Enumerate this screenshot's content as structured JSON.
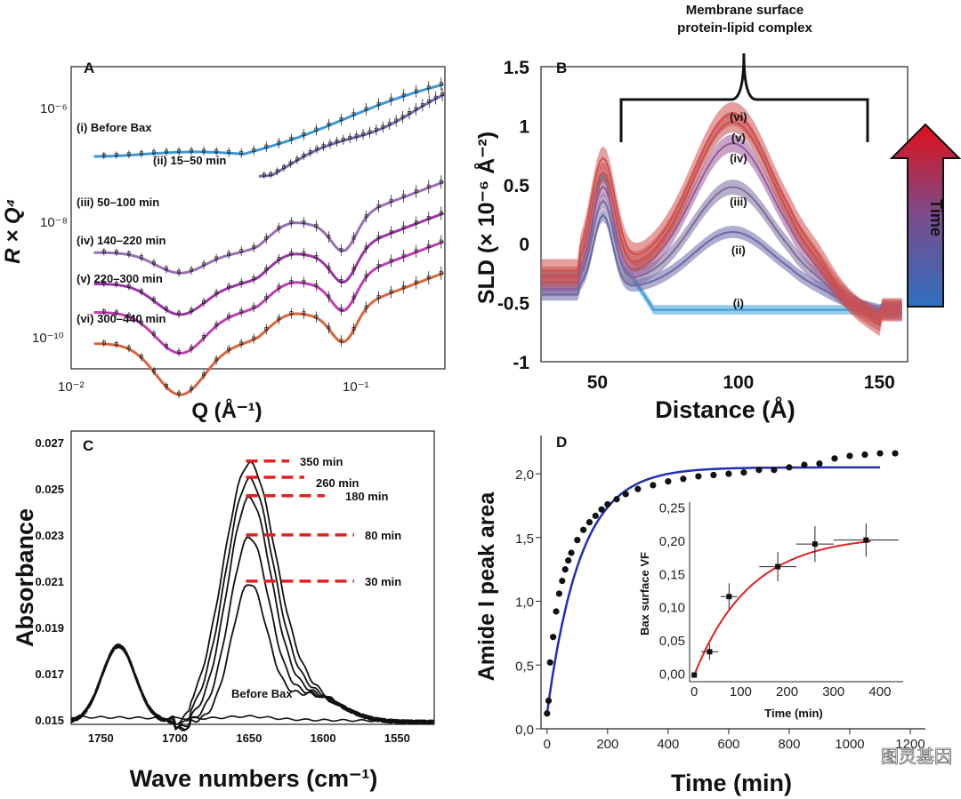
{
  "chart_data": [
    {
      "panel": "A",
      "type": "line",
      "xscale": "log",
      "yscale": "log",
      "xlabel": "Q (Å⁻¹)",
      "ylabel": "R × Q⁴",
      "xlim": [
        0.01,
        0.2
      ],
      "xticks": [
        "10⁻²",
        "10⁻¹"
      ],
      "yticks": [
        "10⁻⁶",
        "10⁻⁸",
        "10⁻¹⁰"
      ],
      "series": [
        {
          "name": "(i) Before Bax",
          "color": "#3a9ad9",
          "offset": 0
        },
        {
          "name": "(ii) 15–50 min",
          "color": "#7d67b4",
          "offset": 0.45
        },
        {
          "name": "(iii) 50–100 min",
          "color": "#9a6fb5",
          "offset": 1.25
        },
        {
          "name": "(iv) 140–220 min",
          "color": "#9c33a8",
          "offset": 1.8
        },
        {
          "name": "(v) 220–300 min",
          "color": "#c23cb8",
          "offset": 2.3
        },
        {
          "name": "(vi) 300–440 min",
          "color": "#d9653a",
          "offset": 2.85
        }
      ]
    },
    {
      "panel": "B",
      "type": "area",
      "xlabel": "Distance (Å)",
      "ylabel": "SLD (× 10⁻⁶ Å⁻²)",
      "xlim": [
        30,
        160
      ],
      "ylim": [
        -1,
        1.5
      ],
      "xticks": [
        "50",
        "100",
        "150"
      ],
      "yticks": [
        "1.5",
        "1",
        "0.5",
        "0",
        "-0.5",
        "-1"
      ],
      "annotation": [
        "Membrane surface",
        "protein-lipid complex"
      ],
      "colorbar_label": "Time",
      "series": [
        {
          "name": "(i)",
          "peak": -0.55,
          "color": "#3a9ad9"
        },
        {
          "name": "(ii)",
          "peak": -0.05,
          "color": "#6a6aa8"
        },
        {
          "name": "(iii)",
          "peak": 0.33,
          "color": "#7b6e9c"
        },
        {
          "name": "(iv)",
          "peak": 0.7,
          "color": "#9a5a9a"
        },
        {
          "name": "(v)",
          "peak": 0.88,
          "color": "#c0504d"
        },
        {
          "name": "(vi)",
          "peak": 0.95,
          "color": "#d05050"
        }
      ]
    },
    {
      "panel": "C",
      "type": "line",
      "xlabel": "Wave numbers (cm⁻¹)",
      "ylabel": "Absorbance",
      "xlim": [
        1770,
        1525
      ],
      "ylim": [
        0.0148,
        0.0275
      ],
      "xticks": [
        "1750",
        "1700",
        "1650",
        "1600",
        "1550"
      ],
      "yticks": [
        "0.027",
        "0.025",
        "0.023",
        "0.021",
        "0.019",
        "0.017",
        "0.015"
      ],
      "baseline_label": "Before Bax",
      "series": [
        {
          "name": "30 min",
          "peak": 0.021
        },
        {
          "name": "80 min",
          "peak": 0.023
        },
        {
          "name": "180 min",
          "peak": 0.0247
        },
        {
          "name": "260 min",
          "peak": 0.0255
        },
        {
          "name": "350 min",
          "peak": 0.0262
        }
      ]
    },
    {
      "panel": "D",
      "type": "scatter",
      "xlabel": "Time (min)",
      "ylabel": "Amide I peak area",
      "xlim": [
        -20,
        1250
      ],
      "ylim": [
        0,
        2.3
      ],
      "xticks": [
        "0",
        "200",
        "400",
        "600",
        "800",
        "1000",
        "1200"
      ],
      "yticks": [
        "0,0",
        "0,5",
        "1,0",
        "1,5",
        "2,0"
      ],
      "points_x": [
        0,
        5,
        10,
        20,
        30,
        40,
        50,
        60,
        70,
        80,
        100,
        120,
        140,
        160,
        180,
        200,
        230,
        260,
        300,
        350,
        400,
        450,
        500,
        550,
        600,
        650,
        700,
        750,
        800,
        850,
        900,
        950,
        1000,
        1050,
        1100,
        1150
      ],
      "points_y": [
        0.12,
        0.22,
        0.52,
        0.72,
        0.92,
        1.06,
        1.16,
        1.25,
        1.32,
        1.38,
        1.48,
        1.56,
        1.62,
        1.67,
        1.72,
        1.76,
        1.8,
        1.84,
        1.88,
        1.91,
        1.94,
        1.96,
        1.98,
        1.99,
        2.0,
        2.01,
        2.03,
        2.03,
        2.05,
        2.07,
        2.08,
        2.12,
        2.14,
        2.15,
        2.16,
        2.16
      ],
      "fit": {
        "type": "exponential",
        "amax": 2.05,
        "tau": 110,
        "color": "#1f2fb0"
      },
      "inset": {
        "xlabel": "Time (min)",
        "ylabel": "Bax surface VF",
        "xlim": [
          -10,
          450
        ],
        "ylim": [
          -0.01,
          0.26
        ],
        "xticks": [
          "0",
          "100",
          "200",
          "300",
          "400"
        ],
        "yticks": [
          "0,00",
          "0,05",
          "0,10",
          "0,15",
          "0,20",
          "0,25"
        ],
        "points_x": [
          0,
          33,
          75,
          180,
          260,
          370
        ],
        "points_y": [
          0.0,
          0.035,
          0.118,
          0.163,
          0.197,
          0.203
        ],
        "xerr": [
          0,
          18,
          18,
          40,
          40,
          70
        ],
        "yerr": [
          0,
          0.012,
          0.02,
          0.022,
          0.027,
          0.025
        ],
        "fit": {
          "type": "exponential",
          "amax": 0.21,
          "tau": 120,
          "color": "#e02020"
        }
      }
    }
  ],
  "watermark": "图灵基因"
}
